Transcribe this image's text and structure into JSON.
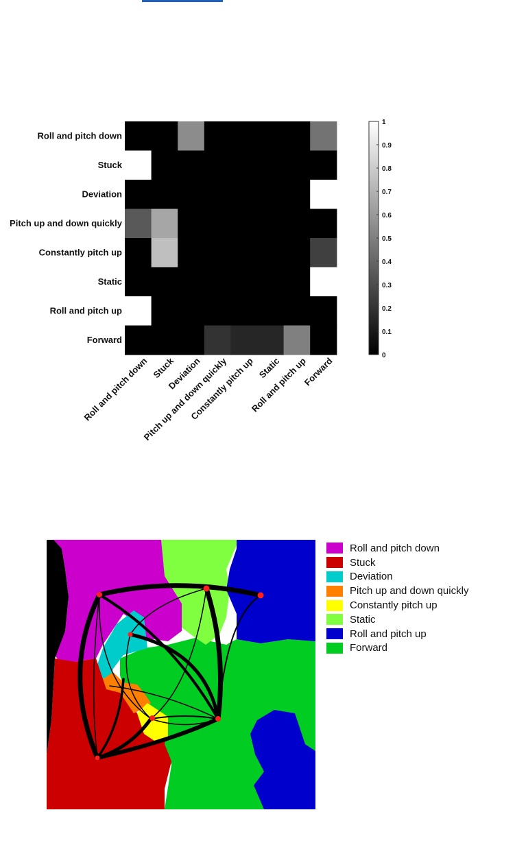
{
  "chart_data": [
    {
      "type": "heatmap",
      "categories": [
        "Roll and pitch down",
        "Stuck",
        "Deviation",
        "Pitch up and down quickly",
        "Constantly pitch up",
        "Static",
        "Roll and pitch up",
        "Forward"
      ],
      "values": [
        [
          0,
          0,
          0.55,
          0,
          0,
          0,
          0,
          0.45
        ],
        [
          1,
          0,
          0,
          0,
          0,
          0,
          0,
          0
        ],
        [
          0,
          0,
          0,
          0,
          0,
          0,
          0,
          1
        ],
        [
          0.35,
          0.65,
          0,
          0,
          0,
          0,
          0,
          0
        ],
        [
          0,
          0.75,
          0,
          0,
          0,
          0,
          0,
          0.25
        ],
        [
          0,
          0,
          0,
          0,
          0,
          0,
          0,
          1
        ],
        [
          1,
          0,
          0,
          0,
          0,
          0,
          0,
          0
        ],
        [
          0,
          0,
          0,
          0.2,
          0.15,
          0.15,
          0.5,
          0
        ]
      ],
      "colorbar": {
        "range": [
          0,
          1
        ],
        "ticks": [
          "0",
          "0.1",
          "0.2",
          "0.3",
          "0.4",
          "0.5",
          "0.6",
          "0.7",
          "0.8",
          "0.9",
          "1"
        ]
      },
      "colormap": "gray"
    },
    {
      "type": "diagram",
      "legend": [
        {
          "label": "Roll and pitch down",
          "color": "#cc00cc"
        },
        {
          "label": "Stuck",
          "color": "#cc0000"
        },
        {
          "label": "Deviation",
          "color": "#00cccc"
        },
        {
          "label": "Pitch up and down quickly",
          "color": "#ff7f00"
        },
        {
          "label": "Constantly pitch up",
          "color": "#ffff00"
        },
        {
          "label": "Static",
          "color": "#80ff40"
        },
        {
          "label": "Roll and pitch up",
          "color": "#0000cc"
        },
        {
          "label": "Forward",
          "color": "#00cc22"
        }
      ],
      "legend_placement": "right",
      "node_color": "#ff2020"
    }
  ]
}
